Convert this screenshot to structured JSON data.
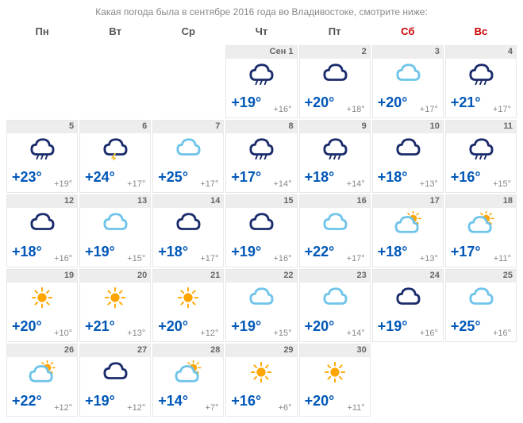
{
  "title": "Какая погода была в сентябре 2016 года во Владивостоке, смотрите ниже:",
  "month_label": "Сен",
  "colors": {
    "cloud_dark": "#1a2b6b",
    "cloud_light": "#6fc4ea",
    "sun": "#ffa500",
    "rain": "#3b5ba5",
    "high_temp": "#0057b8",
    "low_temp": "#888888",
    "tab_bg": "#ededed",
    "weekend": "#cc0000"
  },
  "day_headers": [
    {
      "label": "Пн",
      "weekend": false
    },
    {
      "label": "Вт",
      "weekend": false
    },
    {
      "label": "Ср",
      "weekend": false
    },
    {
      "label": "Чт",
      "weekend": false
    },
    {
      "label": "Пт",
      "weekend": false
    },
    {
      "label": "Сб",
      "weekend": true
    },
    {
      "label": "Вс",
      "weekend": true
    }
  ],
  "leading_empty": 3,
  "days": [
    {
      "d": 1,
      "icon": "rain-dark",
      "high": "+19°",
      "low": "+16°",
      "first": true
    },
    {
      "d": 2,
      "icon": "cloud-dark",
      "high": "+20°",
      "low": "+18°"
    },
    {
      "d": 3,
      "icon": "cloud-light",
      "high": "+20°",
      "low": "+17°"
    },
    {
      "d": 4,
      "icon": "rain-dark",
      "high": "+21°",
      "low": "+17°"
    },
    {
      "d": 5,
      "icon": "rain-dark",
      "high": "+23°",
      "low": "+19°"
    },
    {
      "d": 6,
      "icon": "storm-dark",
      "high": "+24°",
      "low": "+17°"
    },
    {
      "d": 7,
      "icon": "cloud-light",
      "high": "+25°",
      "low": "+17°"
    },
    {
      "d": 8,
      "icon": "rain-dark",
      "high": "+17°",
      "low": "+14°"
    },
    {
      "d": 9,
      "icon": "rain-dark",
      "high": "+18°",
      "low": "+14°"
    },
    {
      "d": 10,
      "icon": "cloud-dark",
      "high": "+18°",
      "low": "+13°"
    },
    {
      "d": 11,
      "icon": "rain-dark",
      "high": "+16°",
      "low": "+15°"
    },
    {
      "d": 12,
      "icon": "cloud-dark",
      "high": "+18°",
      "low": "+16°"
    },
    {
      "d": 13,
      "icon": "cloud-light",
      "high": "+19°",
      "low": "+15°"
    },
    {
      "d": 14,
      "icon": "cloud-dark",
      "high": "+18°",
      "low": "+17°"
    },
    {
      "d": 15,
      "icon": "cloud-dark",
      "high": "+19°",
      "low": "+16°"
    },
    {
      "d": 16,
      "icon": "cloud-light",
      "high": "+22°",
      "low": "+17°"
    },
    {
      "d": 17,
      "icon": "part-sunny-light",
      "high": "+18°",
      "low": "+13°"
    },
    {
      "d": 18,
      "icon": "part-sunny-light",
      "high": "+17°",
      "low": "+11°"
    },
    {
      "d": 19,
      "icon": "sunny",
      "high": "+20°",
      "low": "+10°"
    },
    {
      "d": 20,
      "icon": "sunny",
      "high": "+21°",
      "low": "+13°"
    },
    {
      "d": 21,
      "icon": "sunny",
      "high": "+20°",
      "low": "+12°"
    },
    {
      "d": 22,
      "icon": "cloud-light",
      "high": "+19°",
      "low": "+15°"
    },
    {
      "d": 23,
      "icon": "cloud-light",
      "high": "+20°",
      "low": "+14°"
    },
    {
      "d": 24,
      "icon": "cloud-dark",
      "high": "+19°",
      "low": "+16°"
    },
    {
      "d": 25,
      "icon": "cloud-light",
      "high": "+25°",
      "low": "+16°"
    },
    {
      "d": 26,
      "icon": "part-sunny-light",
      "high": "+22°",
      "low": "+12°"
    },
    {
      "d": 27,
      "icon": "cloud-dark",
      "high": "+19°",
      "low": "+12°"
    },
    {
      "d": 28,
      "icon": "part-sunny-light",
      "high": "+14°",
      "low": "+7°"
    },
    {
      "d": 29,
      "icon": "sunny",
      "high": "+16°",
      "low": "+6°"
    },
    {
      "d": 30,
      "icon": "sunny",
      "high": "+20°",
      "low": "+11°"
    }
  ]
}
